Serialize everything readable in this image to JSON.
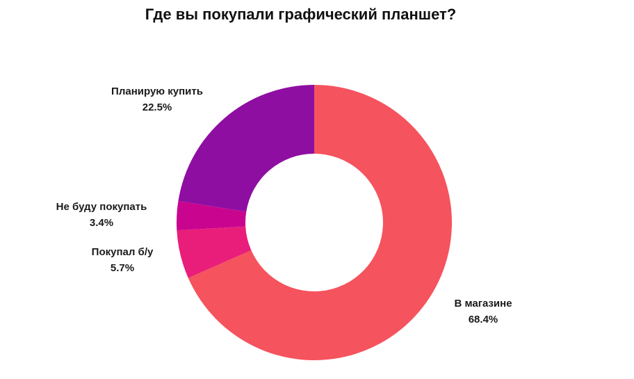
{
  "chart_data": {
    "type": "pie",
    "title": "Где вы покупали графический планшет?",
    "donut": true,
    "start_angle_deg": 0,
    "direction": "clockwise",
    "slices": [
      {
        "label": "В магазине",
        "value": 68.4,
        "value_label": "68.4%",
        "color": "#f5535e"
      },
      {
        "label": "Покупал б/у",
        "value": 5.7,
        "value_label": "5.7%",
        "color": "#e91e7a"
      },
      {
        "label": "Не буду покупать",
        "value": 3.4,
        "value_label": "3.4%",
        "color": "#c9058f"
      },
      {
        "label": "Планирую купить",
        "value": 22.5,
        "value_label": "22.5%",
        "color": "#8f0ea2"
      }
    ]
  }
}
